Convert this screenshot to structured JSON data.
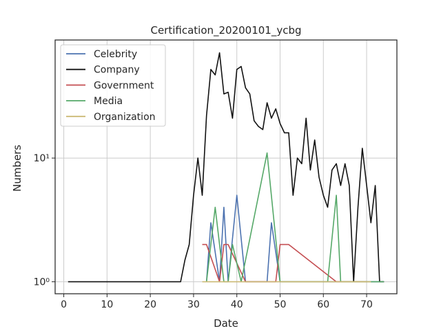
{
  "chart_data": {
    "type": "line",
    "title": "Certification_20200101_ycbg",
    "xlabel": "Date",
    "ylabel": "Numbers",
    "yscale": "log",
    "xlim": [
      -2,
      77
    ],
    "ylim": [
      0.8,
      90
    ],
    "xticks": [
      0,
      10,
      20,
      30,
      40,
      50,
      60,
      70
    ],
    "xtick_labels": [
      "0",
      "10",
      "20",
      "30",
      "40",
      "50",
      "60",
      "70"
    ],
    "yticks": [
      1,
      10
    ],
    "ytick_labels": [
      "10⁰",
      "10¹"
    ],
    "grid": true,
    "legend": "top-left",
    "series": [
      {
        "name": "Celebrity",
        "color": "#4c72b0",
        "x": [
          33,
          34,
          36,
          37,
          38,
          40,
          42,
          47,
          48,
          50,
          74
        ],
        "y": [
          1,
          3,
          1,
          4,
          1,
          5,
          1,
          1,
          3,
          1,
          1
        ]
      },
      {
        "name": "Company",
        "color": "#111111",
        "x": [
          1,
          2,
          3,
          4,
          5,
          6,
          7,
          8,
          9,
          10,
          11,
          12,
          13,
          14,
          15,
          16,
          17,
          18,
          19,
          20,
          21,
          22,
          23,
          24,
          25,
          26,
          27,
          28,
          29,
          30,
          31,
          32,
          33,
          34,
          35,
          36,
          37,
          38,
          39,
          40,
          41,
          42,
          43,
          44,
          45,
          46,
          47,
          48,
          49,
          50,
          51,
          52,
          53,
          54,
          55,
          56,
          57,
          58,
          59,
          60,
          61,
          62,
          63,
          64,
          65,
          66,
          67,
          68,
          69,
          70,
          71,
          72,
          73,
          74
        ],
        "y": [
          1,
          1,
          1,
          1,
          1,
          1,
          1,
          1,
          1,
          1,
          1,
          1,
          1,
          1,
          1,
          1,
          1,
          1,
          1,
          1,
          1,
          1,
          1,
          1,
          1,
          1,
          1,
          1.5,
          2,
          5,
          10,
          5,
          22,
          52,
          47,
          71,
          33,
          34,
          21,
          52,
          55,
          37,
          33,
          20,
          18,
          17,
          28,
          21,
          25,
          19,
          16,
          16,
          5,
          10,
          9,
          21,
          8,
          14,
          7,
          5,
          4,
          8,
          9,
          6,
          9,
          6,
          1,
          4,
          12,
          6,
          3,
          6,
          1,
          1
        ]
      },
      {
        "name": "Government",
        "color": "#c44e52",
        "x": [
          32,
          33,
          36,
          37,
          38,
          42,
          49,
          50,
          52,
          63,
          65,
          70
        ],
        "y": [
          2,
          2,
          1,
          2,
          2,
          1,
          1,
          2,
          2,
          1,
          1,
          1
        ]
      },
      {
        "name": "Media",
        "color": "#55a868",
        "x": [
          33,
          35,
          37,
          38,
          39,
          41,
          47,
          50,
          53,
          61,
          63,
          64,
          65,
          72,
          74
        ],
        "y": [
          1,
          4,
          1,
          1,
          2,
          1,
          11,
          1,
          1,
          1,
          5,
          1,
          1,
          1,
          1
        ]
      },
      {
        "name": "Organization",
        "color": "#ccb974",
        "x": [
          32,
          71
        ],
        "y": [
          1,
          1
        ]
      }
    ]
  }
}
